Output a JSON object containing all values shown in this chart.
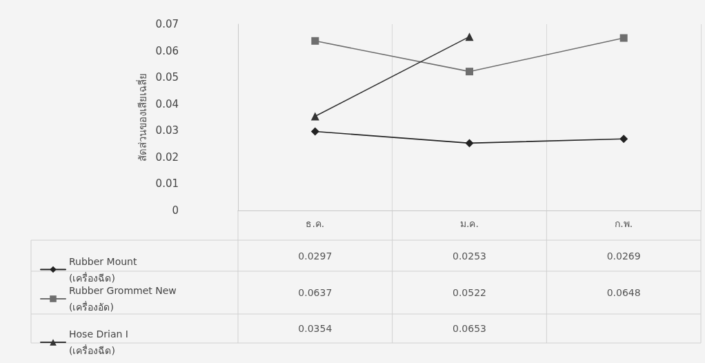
{
  "chart_data": {
    "type": "line",
    "ylabel": "สัดส่วนของเสียเฉลี่ย",
    "categories": [
      "ธ.ค.",
      "ม.ค.",
      "ก.พ."
    ],
    "series": [
      {
        "name": "Rubber Mount (เครื่องฉีด)",
        "color": "#222222",
        "marker": "diamond",
        "values": [
          0.0297,
          0.0253,
          0.0269
        ]
      },
      {
        "name": "Rubber Grommet New (เครื่องอัด)",
        "color": "#6e6e6e",
        "marker": "square",
        "values": [
          0.0637,
          0.0522,
          0.0648
        ]
      },
      {
        "name": "Hose Drian I (เครื่องฉีด)",
        "color": "#333333",
        "marker": "triangle",
        "values": [
          0.0354,
          0.0653,
          null
        ]
      }
    ],
    "ylim": [
      0,
      0.07
    ],
    "yticks": [
      0,
      0.01,
      0.02,
      0.03,
      0.04,
      0.05,
      0.06,
      0.07
    ],
    "grid": "x",
    "legend": "bottom left",
    "data_labels": true,
    "line_style": "solid"
  }
}
